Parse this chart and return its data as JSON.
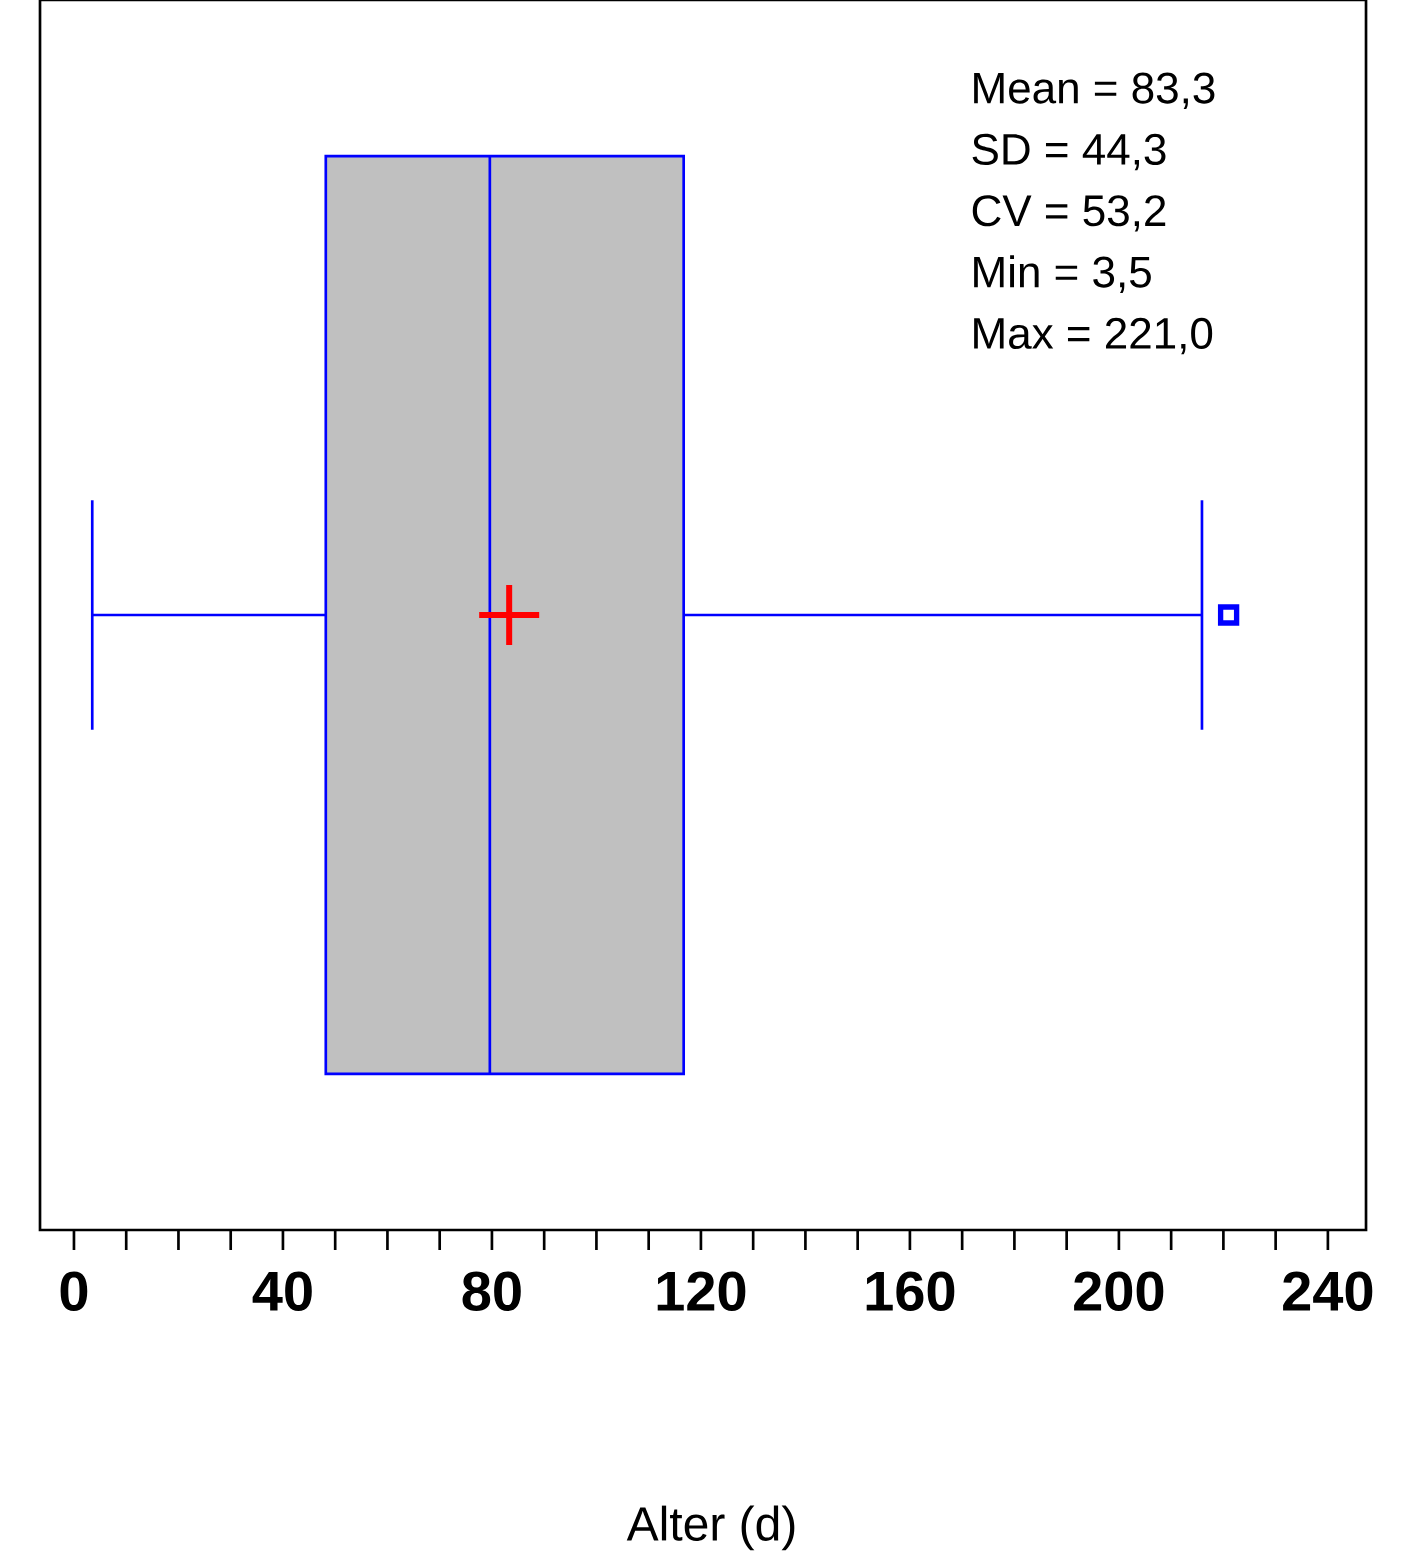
{
  "chart_data": {
    "type": "box",
    "orientation": "horizontal",
    "xlabel": "Alter (d)",
    "categories": [
      null
    ],
    "series": [
      {
        "color": "#0000ff",
        "boxes": [
          {
            "low": 3.5,
            "q1": 48.2,
            "median": 79.6,
            "q3": 116.7,
            "high": 215.9,
            "mean": 83.3,
            "outliers": [
              221.0
            ]
          }
        ]
      }
    ],
    "annotations": [
      "Mean = 83,3",
      "SD = 44,3",
      "CV = 53,2",
      "Min = 3,5",
      "Max = 221,0"
    ],
    "xlim": [
      -6.5,
      247.3
    ],
    "xticks": [
      0,
      40,
      80,
      120,
      160,
      200,
      240
    ]
  }
}
